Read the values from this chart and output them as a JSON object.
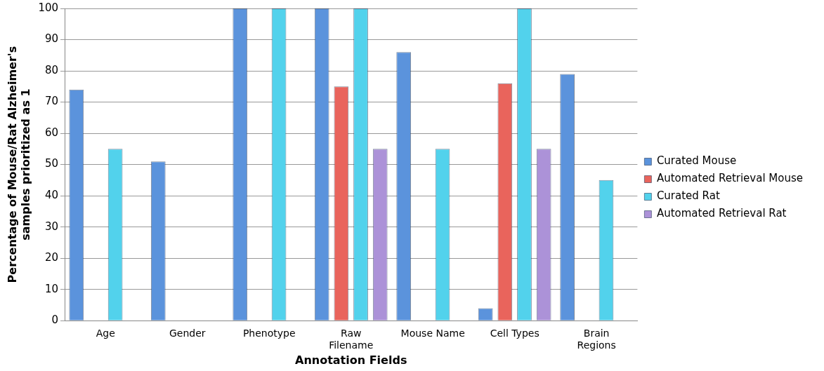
{
  "chart_data": {
    "type": "bar",
    "xlabel": "Annotation Fields",
    "ylabel": "Percentage of Mouse/Rat Alzheimer's samples prioritized as 1",
    "categories": [
      "Age",
      "Gender",
      "Phenotype",
      "Raw Filename",
      "Mouse Name",
      "Cell Types",
      "Brain Regions"
    ],
    "series": [
      {
        "name": "Curated Mouse",
        "color": "#5b93dc",
        "values": [
          74,
          51,
          100,
          100,
          86,
          4,
          79
        ]
      },
      {
        "name": "Automated Retrieval Mouse",
        "color": "#e9645c",
        "values": [
          null,
          null,
          null,
          75,
          null,
          76,
          null
        ]
      },
      {
        "name": "Curated Rat",
        "color": "#52d2ec",
        "values": [
          55,
          null,
          100,
          100,
          55,
          100,
          45
        ]
      },
      {
        "name": "Automated Retrieval Rat",
        "color": "#ac92d8",
        "values": [
          null,
          null,
          null,
          55,
          null,
          55,
          null
        ]
      }
    ],
    "ylim": [
      0,
      100
    ],
    "yticks": [
      0,
      10,
      20,
      30,
      40,
      50,
      60,
      70,
      80,
      90,
      100
    ],
    "grid": "y",
    "legend": "right"
  }
}
